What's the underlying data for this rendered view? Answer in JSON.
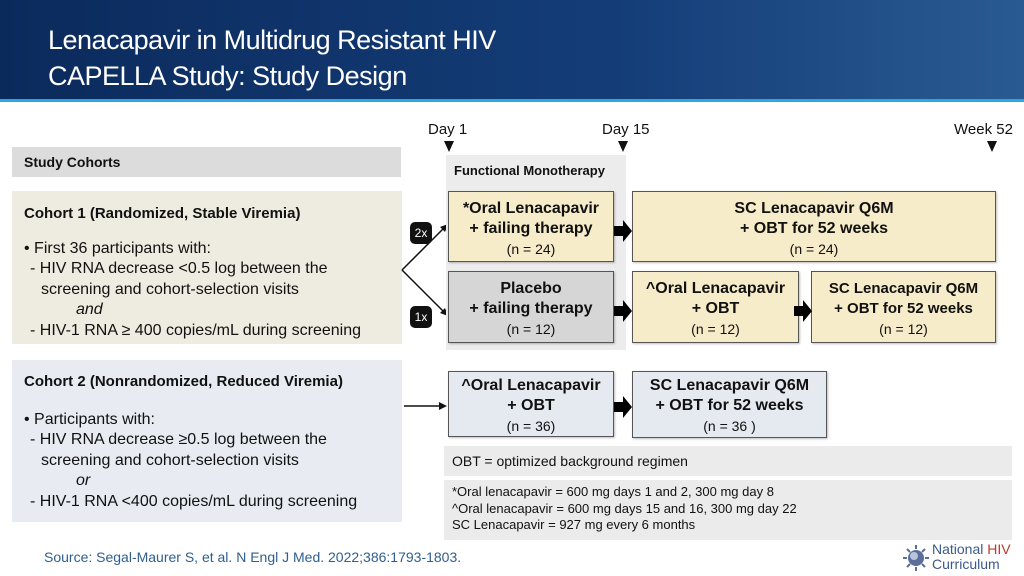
{
  "header": {
    "title_line1": "Lenacapavir in Multidrug Resistant HIV",
    "title_line2": "CAPELLA Study: Study Design"
  },
  "timeline": {
    "day1": "Day 1",
    "day15": "Day 15",
    "week52": "Week 52"
  },
  "cohorts": {
    "header": "Study Cohorts",
    "cohort1": {
      "title": "Cohort 1 (Randomized, Stable Viremia)",
      "bullet": "First 36 participants with:",
      "line1": "- HIV RNA decrease <0.5 log between the",
      "line2": "screening and cohort-selection visits",
      "conj": "and",
      "line3": "- HIV-1 RNA ≥ 400 copies/mL during screening"
    },
    "cohort2": {
      "title": "Cohort 2 (Nonrandomized, Reduced Viremia)",
      "bullet": "Participants with:",
      "line1": "- HIV RNA decrease ≥0.5 log between the",
      "line2": "screening and cohort-selection visits",
      "conj": "or",
      "line3": "- HIV-1 RNA <400 copies/mL during screening"
    }
  },
  "randomization": {
    "arm1": "2x",
    "arm2": "1x"
  },
  "functional_monotherapy": "Functional Monotherapy",
  "boxes": {
    "c1_oral": {
      "l1": "*Oral Lenacapavir",
      "l2": "+ failing therapy",
      "n": "(n = 24)"
    },
    "c1_sc": {
      "l1": "SC Lenacapavir Q6M",
      "l2": "+ OBT for 52 weeks",
      "n": "(n = 24)"
    },
    "placebo": {
      "l1": "Placebo",
      "l2": "+ failing therapy",
      "n": "(n = 12)"
    },
    "c1b_oral": {
      "l1": "^Oral Lenacapavir",
      "l2": "+ OBT",
      "n": "(n = 12)"
    },
    "c1b_sc": {
      "l1": "SC Lenacapavir Q6M",
      "l2": "+ OBT for 52 weeks",
      "n": "(n = 12)"
    },
    "c2_oral": {
      "l1": "^Oral Lenacapavir",
      "l2": "+ OBT",
      "n": "(n = 36)"
    },
    "c2_sc": {
      "l1": "SC Lenacapavir Q6M",
      "l2": "+ OBT for 52 weeks",
      "n": "(n = 36 )"
    }
  },
  "footnotes": {
    "obt": "OBT = optimized background regimen",
    "f1": "*Oral lenacapavir = 600 mg days 1 and 2, 300 mg day 8",
    "f2": "^Oral lenacapavir = 600 mg days 15 and 16, 300 mg day 22",
    "f3": "SC Lenacapavir = 927 mg every 6 months"
  },
  "source": "Source: Segal-Maurer S, et al. N Engl J Med. 2022;386:1793-1803.",
  "logo": {
    "line1a": "National ",
    "line1b": "HIV",
    "line2": "Curriculum"
  },
  "colors": {
    "header_bg": "#143d78",
    "accent": "#29a9e0",
    "beige": "#f7ecc9",
    "placebo": "#d6d6d6",
    "cohort2": "#e5e9f0",
    "logo_red": "#c0392b"
  }
}
